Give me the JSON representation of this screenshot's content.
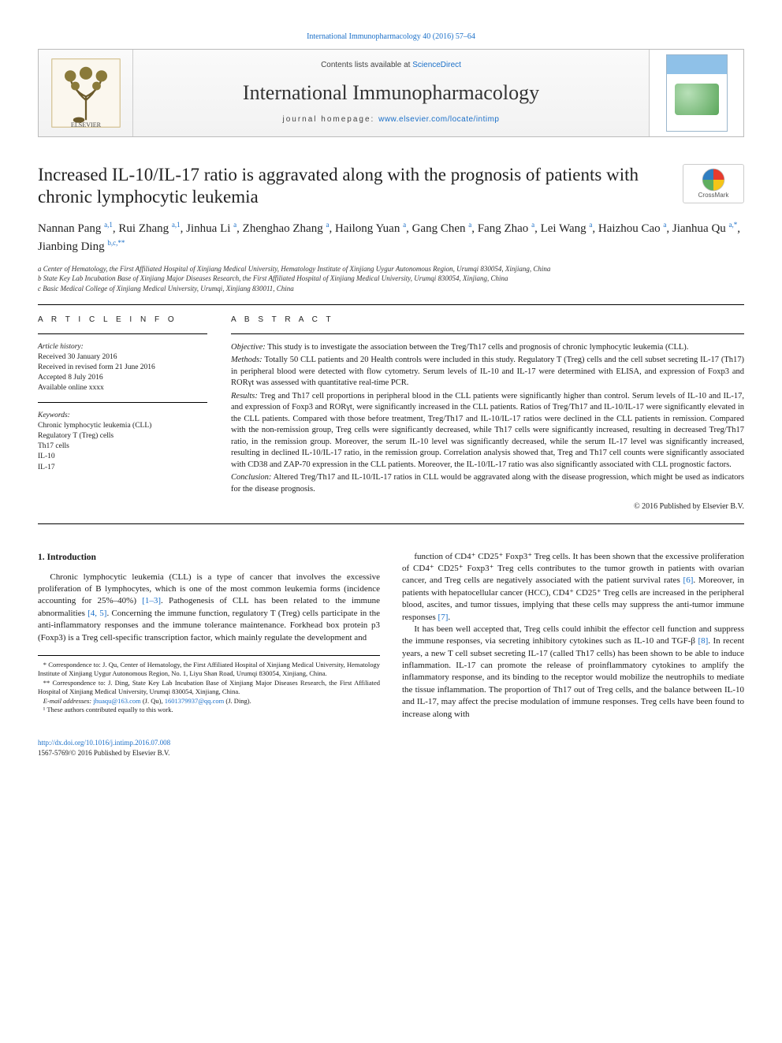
{
  "journal": {
    "citation_line": "International Immunopharmacology 40 (2016) 57–64",
    "contents_prefix": "Contents lists available at ",
    "contents_link_text": "ScienceDirect",
    "name": "International Immunopharmacology",
    "homepage_prefix": "journal homepage: ",
    "homepage_link_text": "www.elsevier.com/locate/intimp",
    "cover_title_small": "International Immunopharmacology"
  },
  "colors": {
    "link": "#1a6fc8",
    "text": "#1a1a1a",
    "elsevier_orange": "#ff6a00",
    "elsevier_dark": "#1a1a1a",
    "crossmark_red": "#e63b2e",
    "crossmark_yellow": "#f5c518",
    "crossmark_blue": "#2f7ec1",
    "crossmark_green": "#5fae5f"
  },
  "article": {
    "title": "Increased IL-10/IL-17 ratio is aggravated along with the prognosis of patients with chronic lymphocytic leukemia",
    "crossmark_label": "CrossMark"
  },
  "authors_html": "Nannan Pang <sup class='sup-link'>a,1</sup>, Rui Zhang <sup class='sup-link'>a,1</sup>, Jinhua Li <sup class='sup-link'>a</sup>, Zhenghao Zhang <sup class='sup-link'>a</sup>, Hailong Yuan <sup class='sup-link'>a</sup>, Gang Chen <sup class='sup-link'>a</sup>, Fang Zhao <sup class='sup-link'>a</sup>, Lei Wang <sup class='sup-link'>a</sup>, Haizhou Cao <sup class='sup-link'>a</sup>, Jianhua Qu <sup class='sup-link'>a,*</sup>, Jianbing Ding <sup class='sup-link'>b,c,**</sup>",
  "affiliations": [
    "a  Center of Hematology, the First Affiliated Hospital of Xinjiang Medical University, Hematology Institute of Xinjiang Uygur Autonomous Region, Urumqi 830054, Xinjiang, China",
    "b  State Key Lab Incubation Base of Xinjiang Major Diseases Research, the First Affiliated Hospital of Xinjiang Medical University, Urumqi 830054, Xinjiang, China",
    "c  Basic Medical College of Xinjiang Medical University, Urumqi, Xinjiang 830011, China"
  ],
  "info": {
    "heading": "A R T I C L E   I N F O",
    "history_label": "Article history:",
    "history": [
      "Received 30 January 2016",
      "Received in revised form 21 June 2016",
      "Accepted 8 July 2016",
      "Available online xxxx"
    ],
    "keywords_label": "Keywords:",
    "keywords": [
      "Chronic lymphocytic leukemia (CLL)",
      "Regulatory T (Treg) cells",
      "Th17 cells",
      "IL-10",
      "IL-17"
    ]
  },
  "abstract": {
    "heading": "A B S T R A C T",
    "objective_label": "Objective:",
    "objective": " This study is to investigate the association between the Treg/Th17 cells and prognosis of chronic lymphocytic leukemia (CLL).",
    "methods_label": "Methods:",
    "methods": " Totally 50 CLL patients and 20 Health controls were included in this study. Regulatory T (Treg) cells and the cell subset secreting IL-17 (Th17) in peripheral blood were detected with flow cytometry. Serum levels of IL-10 and IL-17 were determined with ELISA, and expression of Foxp3 and RORγt was assessed with quantitative real-time PCR.",
    "results_label": "Results:",
    "results": " Treg and Th17 cell proportions in peripheral blood in the CLL patients were significantly higher than control. Serum levels of IL-10 and IL-17, and expression of Foxp3 and RORγt, were significantly increased in the CLL patients. Ratios of Treg/Th17 and IL-10/IL-17 were significantly elevated in the CLL patients. Compared with those before treatment, Treg/Th17 and IL-10/IL-17 ratios were declined in the CLL patients in remission. Compared with the non-remission group, Treg cells were significantly decreased, while Th17 cells were significantly increased, resulting in decreased Treg/Th17 ratio, in the remission group. Moreover, the serum IL-10 level was significantly decreased, while the serum IL-17 level was significantly increased, resulting in declined IL-10/IL-17 ratio, in the remission group. Correlation analysis showed that, Treg and Th17 cell counts were significantly associated with CD38 and ZAP-70 expression in the CLL patients. Moreover, the IL-10/IL-17 ratio was also significantly associated with CLL prognostic factors.",
    "conclusion_label": "Conclusion:",
    "conclusion": " Altered Treg/Th17 and IL-10/IL-17 ratios in CLL would be aggravated along with the disease progression, which might be used as indicators for the disease prognosis.",
    "copyright": "© 2016 Published by Elsevier B.V."
  },
  "body": {
    "section_heading": "1. Introduction",
    "col1_p1_a": "Chronic lymphocytic leukemia (CLL) is a type of cancer that involves the excessive proliferation of B lymphocytes, which is one of the most common leukemia forms (incidence accounting for 25%–40%) ",
    "col1_p1_ref1": "[1–3]",
    "col1_p1_b": ". Pathogenesis of CLL has been related to the immune abnormalities ",
    "col1_p1_ref2": "[4, 5]",
    "col1_p1_c": ". Concerning the immune function, regulatory T (Treg) cells participate in the anti-inflammatory responses and the immune tolerance maintenance. Forkhead box protein p3 (Foxp3) is a Treg cell-specific transcription factor, which mainly regulate the development and",
    "col2_p1_a": "function of CD4⁺ CD25⁺ Foxp3⁺ Treg cells. It has been shown that the excessive proliferation of CD4⁺ CD25⁺ Foxp3⁺ Treg cells contributes to the tumor growth in patients with ovarian cancer, and Treg cells are negatively associated with the patient survival rates ",
    "col2_p1_ref1": "[6]",
    "col2_p1_b": ". Moreover, in patients with hepatocellular cancer (HCC), CD4⁺ CD25⁺ Treg cells are increased in the peripheral blood, ascites, and tumor tissues, implying that these cells may suppress the anti-tumor immune responses ",
    "col2_p1_ref2": "[7]",
    "col2_p1_c": ".",
    "col2_p2_a": "It has been well accepted that, Treg cells could inhibit the effector cell function and suppress the immune responses, via secreting inhibitory cytokines such as IL-10 and TGF-β ",
    "col2_p2_ref1": "[8]",
    "col2_p2_b": ". In recent years, a new T cell subset secreting IL-17 (called Th17 cells) has been shown to be able to induce inflammation. IL-17 can promote the release of proinflammatory cytokines to amplify the inflammatory response, and its binding to the receptor would mobilize the neutrophils to mediate the tissue inflammation. The proportion of Th17 out of Treg cells, and the balance between IL-10 and IL-17, may affect the precise modulation of immune responses. Treg cells have been found to increase along with"
  },
  "footnotes": {
    "corr1": "*  Correspondence to: J. Qu, Center of Hematology, the First Affiliated Hospital of Xinjiang Medical University, Hematology Institute of Xinjiang Uygur Autonomous Region, No. 1, Liyu Shan Road, Urumqi 830054, Xinjiang, China.",
    "corr2": "** Correspondence to: J. Ding, State Key Lab Incubation Base of Xinjiang Major Diseases Research, the First Affiliated Hospital of Xinjiang Medical University, Urumqi 830054, Xinjiang, China.",
    "emails_label": "E-mail addresses: ",
    "email1": "jhuaqu@163.com",
    "email1_who": " (J. Qu), ",
    "email2": "1601379937@qq.com",
    "email2_who": " (J. Ding).",
    "equal": "¹  These authors contributed equally to this work."
  },
  "footer": {
    "doi": "http://dx.doi.org/10.1016/j.intimp.2016.07.008",
    "issn_line": "1567-5769/© 2016 Published by Elsevier B.V."
  }
}
